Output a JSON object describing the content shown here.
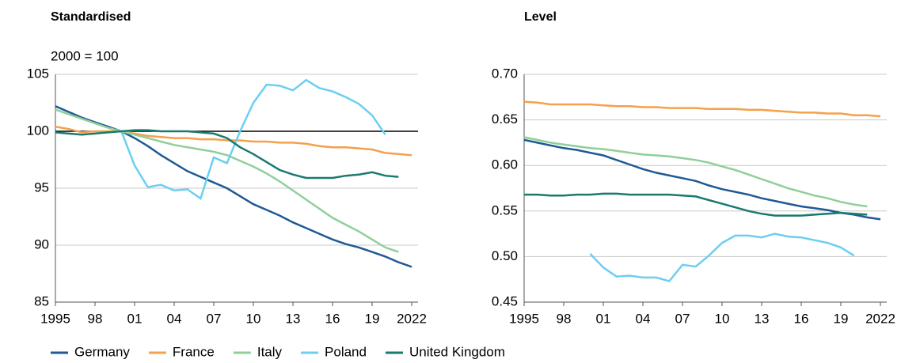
{
  "chart_data": [
    {
      "type": "line",
      "title": "Standardised",
      "subtitle": "2000 = 100",
      "x": [
        1995,
        1996,
        1997,
        1998,
        1999,
        2000,
        2001,
        2002,
        2003,
        2004,
        2005,
        2006,
        2007,
        2008,
        2009,
        2010,
        2011,
        2012,
        2013,
        2014,
        2015,
        2016,
        2017,
        2018,
        2019,
        2020,
        2021,
        2022
      ],
      "xlim": [
        1995,
        2022
      ],
      "xticks": [
        {
          "value": 1995,
          "label": "1995"
        },
        {
          "value": 1998,
          "label": "98"
        },
        {
          "value": 2001,
          "label": "01"
        },
        {
          "value": 2004,
          "label": "04"
        },
        {
          "value": 2007,
          "label": "07"
        },
        {
          "value": 2010,
          "label": "10"
        },
        {
          "value": 2013,
          "label": "13"
        },
        {
          "value": 2016,
          "label": "16"
        },
        {
          "value": 2019,
          "label": "19"
        },
        {
          "value": 2022,
          "label": "2022"
        }
      ],
      "ylim": [
        85,
        105
      ],
      "yticks": [
        85,
        90,
        95,
        100,
        105
      ],
      "grid": true,
      "hline": 100,
      "series": [
        {
          "name": "Germany",
          "color": "#1f5a94",
          "values": [
            102.2,
            101.7,
            101.2,
            100.8,
            100.4,
            100,
            99.4,
            98.7,
            97.9,
            97.2,
            96.5,
            96.0,
            95.5,
            95.0,
            94.3,
            93.6,
            93.1,
            92.6,
            92.0,
            91.5,
            91.0,
            90.5,
            90.1,
            89.8,
            89.4,
            89.0,
            88.5,
            88.1
          ]
        },
        {
          "name": "France",
          "color": "#f5a04a",
          "values": [
            100.4,
            100.2,
            99.9,
            100,
            100,
            100,
            99.8,
            99.6,
            99.5,
            99.4,
            99.4,
            99.3,
            99.3,
            99.2,
            99.2,
            99.1,
            99.1,
            99.0,
            99.0,
            98.9,
            98.7,
            98.6,
            98.6,
            98.5,
            98.4,
            98.1,
            98.0,
            97.9
          ]
        },
        {
          "name": "Italy",
          "color": "#8fcf9a",
          "values": [
            101.9,
            101.5,
            101.1,
            100.7,
            100.3,
            100,
            99.7,
            99.4,
            99.1,
            98.8,
            98.6,
            98.4,
            98.2,
            97.9,
            97.4,
            96.9,
            96.3,
            95.6,
            94.8,
            94.0,
            93.2,
            92.4,
            91.8,
            91.2,
            90.5,
            89.8,
            89.4,
            null
          ]
        },
        {
          "name": "Poland",
          "color": "#6ccff0",
          "values": [
            null,
            null,
            null,
            null,
            null,
            100,
            97,
            95.1,
            95.3,
            94.8,
            94.9,
            94.1,
            97.7,
            97.2,
            100,
            102.5,
            104.1,
            104,
            103.6,
            104.5,
            103.8,
            103.5,
            103,
            102.4,
            101.4,
            99.7,
            null,
            null
          ]
        },
        {
          "name": "United Kingdom",
          "color": "#1a7a6e",
          "values": [
            99.9,
            99.8,
            99.7,
            99.8,
            99.9,
            100,
            100.1,
            100.1,
            100,
            100,
            100,
            99.9,
            99.8,
            99.4,
            98.6,
            98.0,
            97.3,
            96.6,
            96.2,
            95.9,
            95.9,
            95.9,
            96.1,
            96.2,
            96.4,
            96.1,
            96.0,
            null
          ]
        }
      ]
    },
    {
      "type": "line",
      "title": "Level",
      "x": [
        1995,
        1996,
        1997,
        1998,
        1999,
        2000,
        2001,
        2002,
        2003,
        2004,
        2005,
        2006,
        2007,
        2008,
        2009,
        2010,
        2011,
        2012,
        2013,
        2014,
        2015,
        2016,
        2017,
        2018,
        2019,
        2020,
        2021,
        2022
      ],
      "xlim": [
        1995,
        2022
      ],
      "xticks": [
        {
          "value": 1995,
          "label": "1995"
        },
        {
          "value": 1998,
          "label": "98"
        },
        {
          "value": 2001,
          "label": "01"
        },
        {
          "value": 2004,
          "label": "04"
        },
        {
          "value": 2007,
          "label": "07"
        },
        {
          "value": 2010,
          "label": "10"
        },
        {
          "value": 2013,
          "label": "13"
        },
        {
          "value": 2016,
          "label": "16"
        },
        {
          "value": 2019,
          "label": "19"
        },
        {
          "value": 2022,
          "label": "2022"
        }
      ],
      "ylim": [
        0.45,
        0.7
      ],
      "yticks": [
        0.45,
        {
          "value": 0.5,
          "label": "0.50"
        },
        0.55,
        {
          "value": 0.6,
          "label": "0.60"
        },
        0.65,
        {
          "value": 0.7,
          "label": "0.70"
        }
      ],
      "grid": true,
      "series": [
        {
          "name": "Germany",
          "color": "#1f5a94",
          "values": [
            0.628,
            0.625,
            0.622,
            0.619,
            0.617,
            0.614,
            0.611,
            0.606,
            0.601,
            0.596,
            0.592,
            0.589,
            0.586,
            0.583,
            0.578,
            0.574,
            0.571,
            0.568,
            0.564,
            0.561,
            0.558,
            0.555,
            0.553,
            0.551,
            0.548,
            0.546,
            0.543,
            0.541
          ]
        },
        {
          "name": "France",
          "color": "#f5a04a",
          "values": [
            0.67,
            0.669,
            0.667,
            0.667,
            0.667,
            0.667,
            0.666,
            0.665,
            0.665,
            0.664,
            0.664,
            0.663,
            0.663,
            0.663,
            0.662,
            0.662,
            0.662,
            0.661,
            0.661,
            0.66,
            0.659,
            0.658,
            0.658,
            0.657,
            0.657,
            0.655,
            0.655,
            0.654
          ]
        },
        {
          "name": "Italy",
          "color": "#8fcf9a",
          "values": [
            0.631,
            0.628,
            0.625,
            0.623,
            0.621,
            0.619,
            0.618,
            0.616,
            0.614,
            0.612,
            0.611,
            0.61,
            0.608,
            0.606,
            0.603,
            0.599,
            0.595,
            0.59,
            0.585,
            0.58,
            0.575,
            0.571,
            0.567,
            0.564,
            0.56,
            0.557,
            0.555,
            null
          ]
        },
        {
          "name": "Poland",
          "color": "#6ccff0",
          "values": [
            null,
            null,
            null,
            null,
            null,
            0.503,
            0.488,
            0.478,
            0.479,
            0.477,
            0.477,
            0.473,
            0.491,
            0.489,
            0.501,
            0.515,
            0.523,
            0.523,
            0.521,
            0.525,
            0.522,
            0.521,
            0.518,
            0.515,
            0.51,
            0.501,
            null,
            null
          ]
        },
        {
          "name": "United Kingdom",
          "color": "#1a7a6e",
          "values": [
            0.568,
            0.568,
            0.567,
            0.567,
            0.568,
            0.568,
            0.569,
            0.569,
            0.568,
            0.568,
            0.568,
            0.568,
            0.567,
            0.566,
            0.562,
            0.558,
            0.554,
            0.55,
            0.547,
            0.545,
            0.545,
            0.545,
            0.546,
            0.547,
            0.548,
            0.547,
            0.546,
            null
          ]
        }
      ]
    }
  ]
}
